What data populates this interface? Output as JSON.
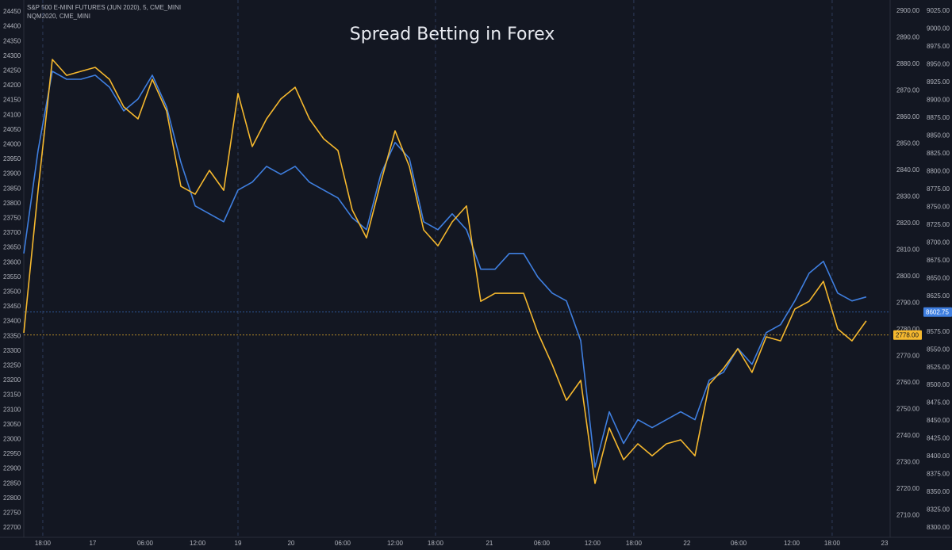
{
  "chart_data": {
    "type": "line",
    "title": "Spread Betting in Forex",
    "x": [
      0,
      1,
      2,
      3,
      4,
      5,
      6,
      7,
      8,
      9,
      10,
      11,
      12,
      13,
      14,
      15,
      16,
      17,
      18,
      19,
      20,
      21,
      22,
      23,
      24,
      25,
      26,
      27,
      28,
      29,
      30,
      31,
      32,
      33,
      34,
      35,
      36,
      37,
      38,
      39,
      40,
      41,
      42,
      43,
      44,
      45,
      46,
      47,
      48,
      49,
      50,
      51,
      52,
      53,
      54,
      55,
      56,
      57,
      58,
      59
    ],
    "xlim": [
      0,
      60.67
    ],
    "xticks": [
      {
        "value": 1.33,
        "label": "18:00"
      },
      {
        "value": 4.83,
        "label": "17"
      },
      {
        "value": 8.5,
        "label": "06:00"
      },
      {
        "value": 12.17,
        "label": "12:00"
      },
      {
        "value": 15,
        "label": "19"
      },
      {
        "value": 18.72,
        "label": "20"
      },
      {
        "value": 22.33,
        "label": "06:00"
      },
      {
        "value": 26,
        "label": "12:00"
      },
      {
        "value": 28.83,
        "label": "18:00"
      },
      {
        "value": 32.61,
        "label": "21"
      },
      {
        "value": 36.28,
        "label": "06:00"
      },
      {
        "value": 39.83,
        "label": "12:00"
      },
      {
        "value": 42.72,
        "label": "18:00"
      },
      {
        "value": 46.44,
        "label": "22"
      },
      {
        "value": 50.06,
        "label": "06:00"
      },
      {
        "value": 53.78,
        "label": "12:00"
      },
      {
        "value": 56.61,
        "label": "18:00"
      },
      {
        "value": 60.28,
        "label": "23"
      }
    ],
    "series": [
      {
        "name": "S&P 500 E-MINI FUTURES (JUN 2020), 5, CME_MINI",
        "color": "#f5b82e",
        "axis": "y2",
        "values": [
          2778.8,
          2832.5,
          2881.8,
          2875.8,
          2877.3,
          2878.8,
          2874.3,
          2863.9,
          2859.4,
          2874.3,
          2862.4,
          2834.0,
          2831.0,
          2840.0,
          2832.5,
          2869.0,
          2849.0,
          2859.4,
          2866.9,
          2871.3,
          2859.4,
          2851.9,
          2847.5,
          2825.1,
          2814.6,
          2835.5,
          2854.9,
          2841.5,
          2817.6,
          2811.6,
          2820.6,
          2826.6,
          2790.7,
          2793.7,
          2793.7,
          2793.7,
          2778.8,
          2766.9,
          2753.4,
          2760.9,
          2722.1,
          2743.0,
          2731.0,
          2737.0,
          2732.5,
          2737.0,
          2738.5,
          2732.5,
          2759.4,
          2765.4,
          2772.8,
          2763.9,
          2777.3,
          2775.8,
          2787.8,
          2790.7,
          2798.2,
          2780.3,
          2775.8,
          2783.3
        ]
      },
      {
        "name": "NQM2020, CME_MINI",
        "color": "#3f7fe0",
        "axis": "y3",
        "values": [
          8685.0,
          8829.4,
          8940.6,
          8929.4,
          8929.4,
          8935.0,
          8918.3,
          8885.0,
          8901.7,
          8935.0,
          8890.6,
          8812.8,
          8751.7,
          8740.6,
          8729.4,
          8773.9,
          8785.0,
          8807.2,
          8796.1,
          8807.2,
          8785.0,
          8773.9,
          8762.8,
          8735.0,
          8718.3,
          8796.1,
          8840.6,
          8818.3,
          8729.4,
          8718.3,
          8740.6,
          8718.3,
          8662.8,
          8662.8,
          8685.0,
          8685.0,
          8651.7,
          8629.4,
          8618.3,
          8562.8,
          8385.0,
          8462.8,
          8418.3,
          8451.7,
          8440.6,
          8451.7,
          8462.8,
          8451.7,
          8507.2,
          8518.3,
          8551.7,
          8529.4,
          8573.9,
          8585.0,
          8618.3,
          8657.2,
          8673.9,
          8629.4,
          8618.3,
          8623.9
        ]
      }
    ],
    "price_lines": [
      {
        "value": 8602.75,
        "label": "8602.75",
        "axis": "y3",
        "color": "#3f7fe0"
      },
      {
        "value": 2778.0,
        "label": "2778.00",
        "axis": "y2",
        "color": "#f5b82e"
      }
    ],
    "ylim": [
      22700,
      24450
    ],
    "yticks": [
      24450,
      24400,
      24350,
      24300,
      24250,
      24200,
      24150,
      24100,
      24050,
      24000,
      23950,
      23900,
      23850,
      23800,
      23750,
      23700,
      23650,
      23600,
      23550,
      23500,
      23450,
      23400,
      23350,
      23300,
      23250,
      23200,
      23150,
      23100,
      23050,
      23000,
      22950,
      22900,
      22850,
      22800,
      22750,
      22700
    ],
    "y2lim": [
      2700,
      2900
    ],
    "y2ticks": [
      {
        "value": 2900,
        "label": "2900.00"
      },
      {
        "value": 2890,
        "label": "2890.00"
      },
      {
        "value": 2880,
        "label": "2880.00"
      },
      {
        "value": 2870,
        "label": "2870.00"
      },
      {
        "value": 2860,
        "label": "2860.00"
      },
      {
        "value": 2850,
        "label": "2850.00"
      },
      {
        "value": 2840,
        "label": "2840.00"
      },
      {
        "value": 2830,
        "label": "2830.00"
      },
      {
        "value": 2820,
        "label": "2820.00"
      },
      {
        "value": 2810,
        "label": "2810.00"
      },
      {
        "value": 2800,
        "label": "2800.00"
      },
      {
        "value": 2790,
        "label": "2790.00"
      },
      {
        "value": 2780,
        "label": "2780.00"
      },
      {
        "value": 2770,
        "label": "2770.00"
      },
      {
        "value": 2760,
        "label": "2760.00"
      },
      {
        "value": 2750,
        "label": "2750.00"
      },
      {
        "value": 2740,
        "label": "2740.00"
      },
      {
        "value": 2730,
        "label": "2730.00"
      },
      {
        "value": 2720,
        "label": "2720.00"
      },
      {
        "value": 2710,
        "label": "2710.00"
      }
    ],
    "y3lim": [
      8300,
      9025
    ],
    "y3ticks": [
      {
        "value": 9025,
        "label": "9025.00"
      },
      {
        "value": 9000,
        "label": "9000.00"
      },
      {
        "value": 8975,
        "label": "8975.00"
      },
      {
        "value": 8950,
        "label": "8950.00"
      },
      {
        "value": 8925,
        "label": "8925.00"
      },
      {
        "value": 8900,
        "label": "8900.00"
      },
      {
        "value": 8875,
        "label": "8875.00"
      },
      {
        "value": 8850,
        "label": "8850.00"
      },
      {
        "value": 8825,
        "label": "8825.00"
      },
      {
        "value": 8800,
        "label": "8800.00"
      },
      {
        "value": 8775,
        "label": "8775.00"
      },
      {
        "value": 8750,
        "label": "8750.00"
      },
      {
        "value": 8725,
        "label": "8725.00"
      },
      {
        "value": 8700,
        "label": "8700.00"
      },
      {
        "value": 8675,
        "label": "8675.00"
      },
      {
        "value": 8650,
        "label": "8650.00"
      },
      {
        "value": 8625,
        "label": "8625.00"
      },
      {
        "value": 8600,
        "label": "8600.00"
      },
      {
        "value": 8575,
        "label": "8575.00"
      },
      {
        "value": 8550,
        "label": "8550.00"
      },
      {
        "value": 8525,
        "label": "8525.00"
      },
      {
        "value": 8500,
        "label": "8500.00"
      },
      {
        "value": 8475,
        "label": "8475.00"
      },
      {
        "value": 8450,
        "label": "8450.00"
      },
      {
        "value": 8425,
        "label": "8425.00"
      },
      {
        "value": 8400,
        "label": "8400.00"
      },
      {
        "value": 8375,
        "label": "8375.00"
      },
      {
        "value": 8350,
        "label": "8350.00"
      },
      {
        "value": 8325,
        "label": "8325.00"
      },
      {
        "value": 8300,
        "label": "8300.00"
      }
    ]
  }
}
